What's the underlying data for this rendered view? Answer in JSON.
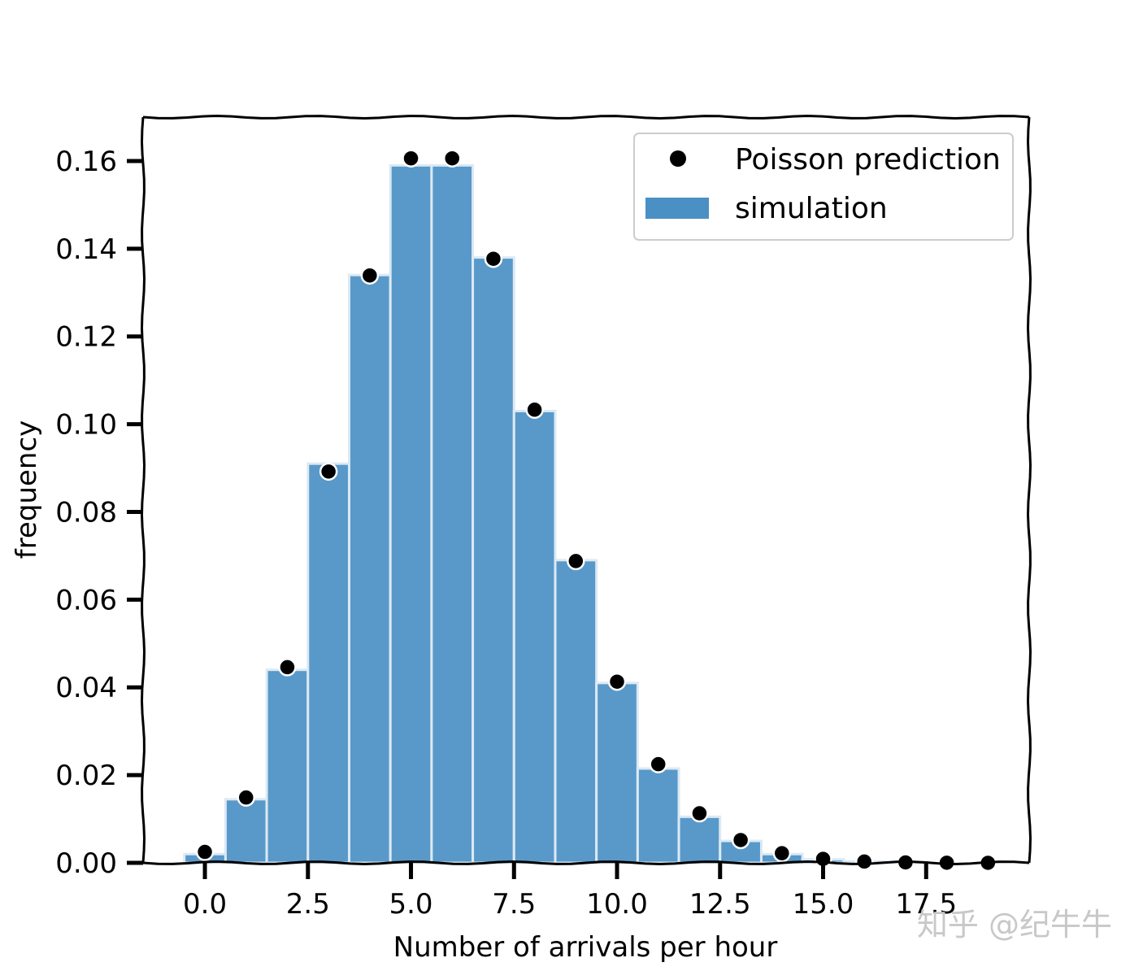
{
  "chart_data": {
    "type": "bar",
    "xlabel": "Number of arrivals per hour",
    "ylabel": "frequency",
    "xlim": [
      -1.5,
      20
    ],
    "ylim": [
      0,
      0.17
    ],
    "xticks": [
      0.0,
      2.5,
      5.0,
      7.5,
      10.0,
      12.5,
      15.0,
      17.5
    ],
    "xtick_labels": [
      "0.0",
      "2.5",
      "5.0",
      "7.5",
      "10.0",
      "12.5",
      "15.0",
      "17.5"
    ],
    "yticks": [
      0.0,
      0.02,
      0.04,
      0.06,
      0.08,
      0.1,
      0.12,
      0.14,
      0.16
    ],
    "ytick_labels": [
      "0.00",
      "0.02",
      "0.04",
      "0.06",
      "0.08",
      "0.10",
      "0.12",
      "0.14",
      "0.16"
    ],
    "series": [
      {
        "name": "simulation",
        "kind": "bar",
        "color": "#4a90c4",
        "x": [
          0,
          1,
          2,
          3,
          4,
          5,
          6,
          7,
          8,
          9,
          10,
          11,
          12,
          13,
          14,
          15,
          16,
          17,
          18,
          19
        ],
        "values": [
          0.002,
          0.0145,
          0.044,
          0.091,
          0.134,
          0.159,
          0.159,
          0.138,
          0.103,
          0.069,
          0.041,
          0.0215,
          0.0105,
          0.005,
          0.002,
          0.0008,
          0.0003,
          0.0001,
          0.0,
          0.0
        ]
      },
      {
        "name": "Poisson prediction",
        "kind": "scatter",
        "color": "#000000",
        "x": [
          0,
          1,
          2,
          3,
          4,
          5,
          6,
          7,
          8,
          9,
          10,
          11,
          12,
          13,
          14,
          15,
          16,
          17,
          18,
          19
        ],
        "values": [
          0.0025,
          0.0149,
          0.0446,
          0.0892,
          0.1339,
          0.1606,
          0.1606,
          0.1377,
          0.1033,
          0.0688,
          0.0413,
          0.0225,
          0.0113,
          0.0052,
          0.0022,
          0.0009,
          0.0003,
          0.0001,
          3e-05,
          1e-05
        ]
      }
    ],
    "legend": {
      "placement": "top-right",
      "entries": [
        "Poisson prediction",
        "simulation"
      ]
    }
  },
  "watermark": "知乎 @纪牛牛",
  "colors": {
    "bar": "#4a90c4",
    "bar_edge": "#dce9f4",
    "point": "#000000",
    "point_edge": "#ffffff",
    "axes": "#000000",
    "legend_border": "#cccccc"
  }
}
